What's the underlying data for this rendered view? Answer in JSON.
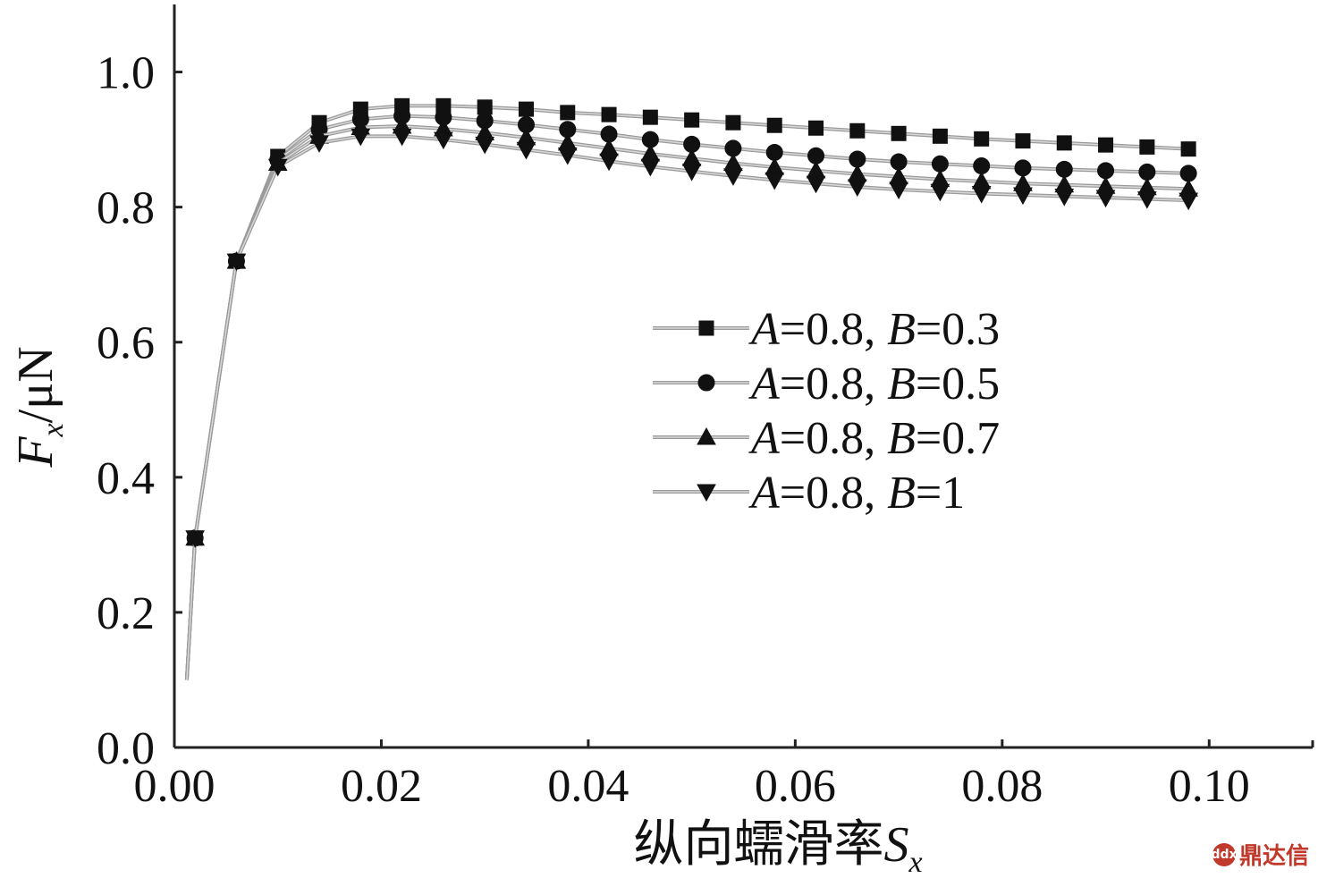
{
  "chart_data": {
    "type": "line",
    "xlabel": "纵向蠕滑率",
    "xlabel_var": "S",
    "xlabel_sub": "x",
    "ylabel_var": "F",
    "ylabel_sub": "x",
    "ylabel_unit": "/μN",
    "xlim": [
      0,
      0.11
    ],
    "ylim": [
      0,
      1.1
    ],
    "x_ticks": [
      "0.00",
      "0.02",
      "0.04",
      "0.06",
      "0.08",
      "0.10"
    ],
    "y_ticks": [
      "0.0",
      "0.2",
      "0.4",
      "0.6",
      "0.8",
      "1.0"
    ],
    "legend_position": "center-right",
    "x": [
      0.002,
      0.006,
      0.01,
      0.014,
      0.018,
      0.022,
      0.026,
      0.03,
      0.034,
      0.038,
      0.042,
      0.046,
      0.05,
      0.054,
      0.058,
      0.062,
      0.066,
      0.07,
      0.074,
      0.078,
      0.082,
      0.086,
      0.09,
      0.094,
      0.098
    ],
    "series": [
      {
        "name_a": "A",
        "name_mid": "=0.8, ",
        "name_b": "B",
        "name_val": "=0.3",
        "marker": "square",
        "values": [
          0.31,
          0.72,
          0.875,
          0.925,
          0.945,
          0.95,
          0.95,
          0.948,
          0.945,
          0.94,
          0.937,
          0.933,
          0.929,
          0.925,
          0.921,
          0.917,
          0.913,
          0.909,
          0.905,
          0.901,
          0.898,
          0.895,
          0.892,
          0.889,
          0.886
        ]
      },
      {
        "name_a": "A",
        "name_mid": "=0.8, ",
        "name_b": "B",
        "name_val": "=0.5",
        "marker": "circle",
        "values": [
          0.31,
          0.72,
          0.87,
          0.915,
          0.93,
          0.935,
          0.933,
          0.928,
          0.922,
          0.915,
          0.908,
          0.9,
          0.893,
          0.887,
          0.881,
          0.876,
          0.871,
          0.867,
          0.864,
          0.861,
          0.858,
          0.856,
          0.854,
          0.852,
          0.85
        ]
      },
      {
        "name_a": "A",
        "name_mid": "=0.8, ",
        "name_b": "B",
        "name_val": "=0.7",
        "marker": "triangle-up",
        "values": [
          0.31,
          0.72,
          0.865,
          0.905,
          0.918,
          0.92,
          0.916,
          0.91,
          0.903,
          0.895,
          0.887,
          0.879,
          0.872,
          0.865,
          0.859,
          0.854,
          0.849,
          0.845,
          0.841,
          0.838,
          0.835,
          0.833,
          0.831,
          0.829,
          0.827
        ]
      },
      {
        "name_a": "A",
        "name_mid": "=0.8, ",
        "name_b": "B",
        "name_val": "=1",
        "marker": "triangle-down",
        "values": [
          0.31,
          0.72,
          0.86,
          0.895,
          0.905,
          0.905,
          0.9,
          0.893,
          0.885,
          0.877,
          0.868,
          0.86,
          0.853,
          0.846,
          0.84,
          0.835,
          0.83,
          0.826,
          0.823,
          0.82,
          0.818,
          0.816,
          0.814,
          0.812,
          0.81
        ]
      }
    ]
  },
  "watermark": {
    "icon": "ddx",
    "text": "鼎达信"
  }
}
